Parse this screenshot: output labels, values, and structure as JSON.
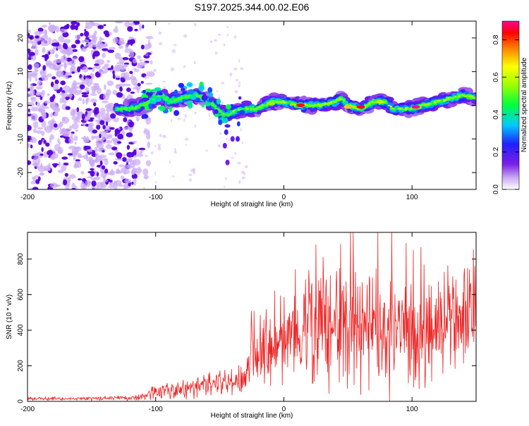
{
  "title": "S197.2025.344.00.02.E06",
  "colors": {
    "snr_line": "#ee2222",
    "strong_blob": "#5500dd",
    "faint_blob": "#c9a9f3",
    "background": "#ffffff"
  },
  "chart_data": [
    {
      "type": "heatmap",
      "name": "spectrogram",
      "title": "S197.2025.344.00.02.E06",
      "xlabel": "Height of straight line (km)",
      "ylabel": "Frequency (Hz)",
      "xlim": [
        -200,
        150
      ],
      "ylim": [
        -25,
        25
      ],
      "x_ticks": [
        -200,
        -100,
        0,
        100
      ],
      "x_tick_labels": [
        "-200",
        "-100",
        "0",
        "100"
      ],
      "y_ticks": [
        -20,
        -10,
        0,
        10,
        20
      ],
      "y_tick_labels": [
        "-20",
        "-10",
        "0",
        "10",
        "20"
      ],
      "colorbar": {
        "label": "Normalized spectral amplitude",
        "range": [
          0,
          0.9
        ],
        "ticks": [
          0,
          0.2,
          0.4,
          0.6,
          0.8
        ],
        "tick_labels": [
          "0.0",
          "0.2",
          "0.4",
          "0.6",
          "0.8"
        ],
        "colormap": "rainbow (white, violet, blue, cyan, green, yellow, orange, red, magenta)"
      },
      "features": {
        "noise_region_x": [
          -200,
          -115
        ],
        "ridge": [
          [
            -130,
            -1
          ],
          [
            -120,
            -1
          ],
          [
            -110,
            0
          ],
          [
            -100,
            2
          ],
          [
            -95,
            3
          ],
          [
            -90,
            1
          ],
          [
            -80,
            2
          ],
          [
            -70,
            3
          ],
          [
            -62,
            2
          ],
          [
            -55,
            0
          ],
          [
            -50,
            -2
          ],
          [
            -45,
            -3
          ],
          [
            -40,
            -2
          ],
          [
            -30,
            -1
          ],
          [
            -20,
            -1
          ],
          [
            -10,
            1
          ],
          [
            0,
            1
          ],
          [
            10,
            0
          ],
          [
            20,
            0
          ],
          [
            30,
            0
          ],
          [
            40,
            1
          ],
          [
            45,
            2
          ],
          [
            50,
            0
          ],
          [
            60,
            -1
          ],
          [
            65,
            0
          ],
          [
            70,
            1
          ],
          [
            80,
            1
          ],
          [
            85,
            -1
          ],
          [
            90,
            -1
          ],
          [
            100,
            -1
          ],
          [
            110,
            0
          ],
          [
            120,
            1
          ],
          [
            130,
            2
          ],
          [
            140,
            3
          ],
          [
            150,
            2
          ]
        ],
        "peaks": [
          {
            "x": 13,
            "y": 0,
            "amplitude": 0.85
          },
          {
            "x": 60,
            "y": -0.5,
            "amplitude": 0.85
          },
          {
            "x": 103,
            "y": -0.5,
            "amplitude": 0.9
          },
          {
            "x": -10,
            "y": 0.5,
            "amplitude": 0.55
          },
          {
            "x": 50,
            "y": -0.5,
            "amplitude": 0.7
          },
          {
            "x": 75,
            "y": 1,
            "amplitude": 0.6
          }
        ]
      }
    },
    {
      "type": "line",
      "name": "snr",
      "xlabel": "Height of straight line (km)",
      "ylabel": "SNR (10 * v/v)",
      "xlim": [
        -200,
        150
      ],
      "ylim": [
        0,
        950
      ],
      "x_ticks": [
        -200,
        -100,
        0,
        100
      ],
      "x_tick_labels": [
        "-200",
        "-100",
        "0",
        "100"
      ],
      "y_ticks": [
        0,
        200,
        400,
        600,
        800
      ],
      "y_tick_labels": [
        "0",
        "200",
        "400",
        "600",
        "800"
      ],
      "series": [
        {
          "name": "SNR",
          "envelope": {
            "x": [
              -200,
              -150,
              -120,
              -110,
              -100,
              -90,
              -80,
              -70,
              -60,
              -50,
              -40,
              -30,
              -27,
              -26,
              -20,
              -10,
              0,
              10,
              20,
              30,
              40,
              50,
              60,
              70,
              80,
              90,
              100,
              110,
              120,
              130,
              140,
              150
            ],
            "mean": [
              15,
              15,
              20,
              25,
              50,
              65,
              70,
              80,
              90,
              95,
              105,
              120,
              200,
              350,
              240,
              300,
              330,
              380,
              380,
              440,
              430,
              440,
              440,
              420,
              420,
              420,
              400,
              400,
              420,
              420,
              440,
              440
            ],
            "amp": [
              8,
              8,
              12,
              20,
              35,
              45,
              45,
              50,
              60,
              60,
              70,
              80,
              120,
              120,
              160,
              190,
              190,
              240,
              260,
              280,
              300,
              320,
              300,
              290,
              280,
              280,
              260,
              260,
              260,
              260,
              280,
              280
            ]
          },
          "max_value": 950
        }
      ]
    }
  ]
}
